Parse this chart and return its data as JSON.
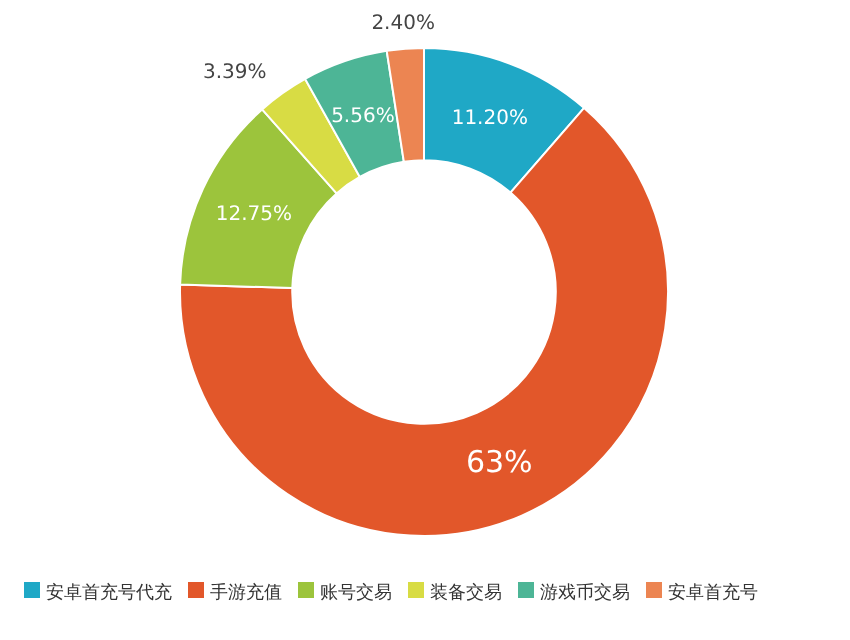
{
  "chart_data": {
    "type": "donut",
    "categories": [
      "安卓首充号代充",
      "手游充值",
      "账号交易",
      "装备交易",
      "游戏币交易",
      "安卓首充号"
    ],
    "values": [
      11.2,
      63,
      12.75,
      3.39,
      5.56,
      2.4
    ],
    "colors": [
      "#1fa8c6",
      "#e2572a",
      "#9cc43c",
      "#d8dc44",
      "#4db596",
      "#ec8552"
    ],
    "value_labels": [
      "11.20%",
      "63%",
      "12.75%",
      "3.39%",
      "5.56%",
      "2.40%"
    ],
    "legend": "bottom"
  }
}
